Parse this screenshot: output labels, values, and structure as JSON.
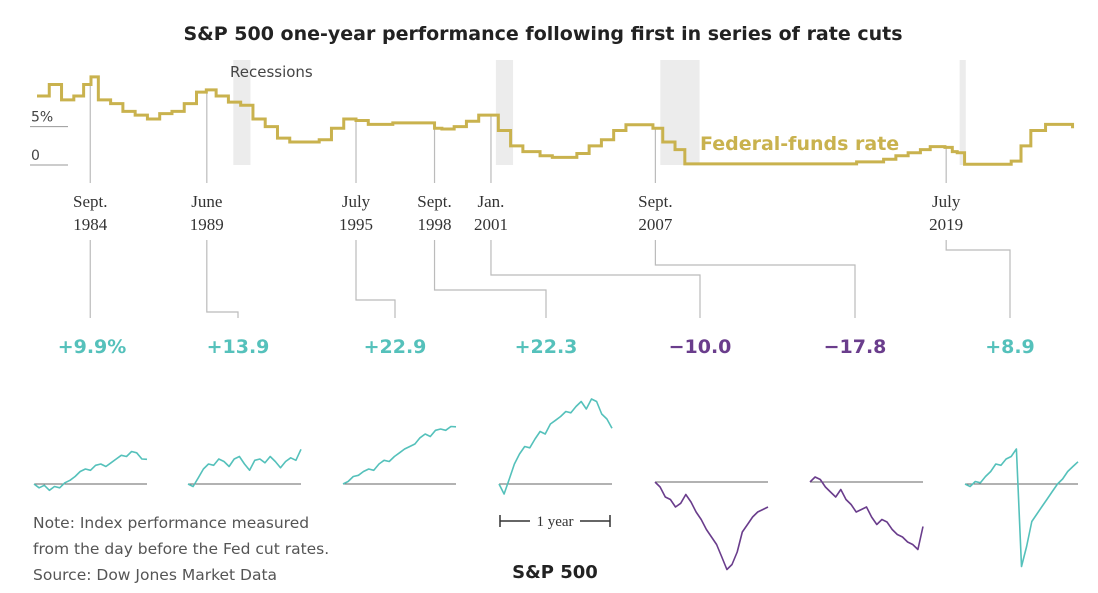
{
  "chart_data": [
    {
      "type": "line",
      "title": "S&P 500 one-year performance following first in series of rate cuts",
      "series": [
        {
          "name": "Federal-funds rate",
          "color": "#c9b24e",
          "x": [
            1982.5,
            1983.0,
            1983.5,
            1984.0,
            1984.4,
            1984.7,
            1985.0,
            1985.5,
            1986.0,
            1986.5,
            1987.0,
            1987.5,
            1988.0,
            1988.5,
            1989.0,
            1989.4,
            1989.8,
            1990.3,
            1990.8,
            1991.3,
            1991.8,
            1992.3,
            1992.8,
            1993.5,
            1994.0,
            1994.5,
            1995.0,
            1995.5,
            1996.0,
            1997.0,
            1998.0,
            1998.7,
            1999.0,
            1999.5,
            2000.0,
            2000.5,
            2000.9,
            2001.3,
            2001.8,
            2002.3,
            2003.0,
            2003.5,
            2004.0,
            2004.5,
            2005.0,
            2005.5,
            2006.0,
            2006.5,
            2007.0,
            2007.6,
            2008.0,
            2008.5,
            2008.9,
            2009.5,
            2010.5,
            2012.0,
            2014.0,
            2015.0,
            2015.9,
            2016.5,
            2017.0,
            2017.5,
            2018.0,
            2018.5,
            2018.9,
            2019.5,
            2019.8,
            2020.0,
            2020.3,
            2021.0,
            2021.9,
            2022.2,
            2022.6,
            2023.0,
            2023.6,
            2024.0,
            2024.7
          ],
          "values": [
            9.0,
            10.5,
            8.5,
            9.0,
            10.5,
            11.5,
            8.5,
            8.0,
            7.0,
            6.5,
            6.0,
            6.7,
            7.0,
            8.0,
            9.5,
            9.8,
            9.0,
            8.2,
            7.8,
            6.0,
            5.0,
            3.5,
            3.0,
            3.0,
            3.3,
            4.8,
            6.0,
            5.8,
            5.3,
            5.5,
            5.5,
            4.8,
            4.7,
            5.0,
            5.7,
            6.5,
            6.5,
            4.5,
            2.5,
            1.75,
            1.2,
            1.0,
            1.0,
            1.5,
            2.5,
            3.3,
            4.5,
            5.25,
            5.25,
            4.8,
            3.0,
            2.0,
            0.15,
            0.15,
            0.15,
            0.15,
            0.15,
            0.15,
            0.4,
            0.4,
            0.75,
            1.2,
            1.6,
            2.0,
            2.4,
            2.3,
            1.75,
            1.6,
            0.1,
            0.1,
            0.1,
            0.5,
            2.5,
            4.5,
            5.3,
            5.3,
            4.8
          ]
        }
      ],
      "annotations": {
        "recessions_label": "Recessions",
        "recessions": [
          [
            1990.5,
            1991.2
          ],
          [
            2001.2,
            2001.9
          ],
          [
            2007.9,
            2009.5
          ],
          [
            2020.1,
            2020.35
          ]
        ],
        "cuts": [
          {
            "month": "Sept.",
            "year": "1984",
            "x": 1984.67
          },
          {
            "month": "June",
            "year": "1989",
            "x": 1989.42
          },
          {
            "month": "July",
            "year": "1995",
            "x": 1995.5
          },
          {
            "month": "Sept.",
            "year": "1998",
            "x": 1998.7
          },
          {
            "month": "Jan.",
            "year": "2001",
            "x": 2001.0
          },
          {
            "month": "Sept.",
            "year": "2007",
            "x": 2007.7
          },
          {
            "month": "July",
            "year": "2019",
            "x": 2019.55
          }
        ]
      },
      "ylabel": "",
      "yticks": [
        "5%",
        "0"
      ],
      "ylim": [
        0,
        12
      ],
      "xlim": [
        1982.5,
        2024.8
      ]
    },
    {
      "type": "line",
      "title": "S&P 500",
      "scale_label": "1 year",
      "series": [
        {
          "label": "+9.9%",
          "value": 9.9,
          "color": "#55c1bb",
          "values": [
            0,
            -1.5,
            -0.5,
            -2.5,
            -1,
            -1.5,
            0.5,
            1.5,
            3,
            5,
            6,
            5.5,
            7.5,
            8,
            7,
            8.5,
            10,
            11.5,
            11,
            13,
            12.5,
            10,
            9.9
          ]
        },
        {
          "label": "+13.9",
          "value": 13.9,
          "color": "#55c1bb",
          "values": [
            0,
            -1,
            2.5,
            6,
            8,
            7.5,
            10,
            9,
            7,
            10,
            11,
            8,
            5.5,
            9.5,
            10,
            8.5,
            11,
            9,
            6.5,
            9,
            10.5,
            9.5,
            13.9
          ]
        },
        {
          "label": "+22.9",
          "value": 22.9,
          "color": "#55c1bb",
          "values": [
            0,
            1,
            3,
            3.5,
            5,
            6,
            5.5,
            8,
            9.5,
            9,
            11,
            12.5,
            14,
            15,
            16,
            18.5,
            20,
            19,
            21.5,
            22,
            21.5,
            23,
            22.9
          ]
        },
        {
          "label": "+22.3",
          "value": 22.3,
          "color": "#55c1bb",
          "values": [
            0,
            -4,
            2,
            8,
            12,
            15,
            14.5,
            18,
            21,
            20,
            24,
            25.5,
            27,
            29,
            28.5,
            31,
            33,
            30,
            34,
            33,
            28,
            26,
            22.3
          ]
        },
        {
          "label": "−10.0",
          "value": -10.0,
          "color": "#6a3d8c",
          "values": [
            0,
            -2,
            -6,
            -7,
            -10,
            -8.5,
            -5,
            -8,
            -12,
            -15,
            -19,
            -22,
            -25,
            -30,
            -35,
            -33,
            -28,
            -20,
            -17,
            -14,
            -12,
            -11,
            -10.0
          ]
        },
        {
          "label": "−17.8",
          "value": -17.8,
          "color": "#6a3d8c",
          "values": [
            0,
            2,
            1,
            -2,
            -4,
            -6,
            -3,
            -7,
            -9,
            -12,
            -11,
            -10,
            -14,
            -17,
            -15,
            -16,
            -19,
            -21,
            -22,
            -24,
            -25,
            -27,
            -17.8
          ]
        },
        {
          "label": "+8.9",
          "value": 8.9,
          "color": "#55c1bb",
          "values": [
            0,
            -1,
            1,
            0.5,
            3,
            5,
            8,
            7.5,
            10,
            11,
            14,
            -33,
            -25,
            -15,
            -12,
            -9,
            -6,
            -3,
            0,
            2,
            5,
            7,
            8.9
          ]
        }
      ]
    }
  ],
  "notes": {
    "note_line1": "Note: Index performance measured",
    "note_line2": "from the day before the Fed cut rates.",
    "source": "Source: Dow Jones Market Data"
  }
}
